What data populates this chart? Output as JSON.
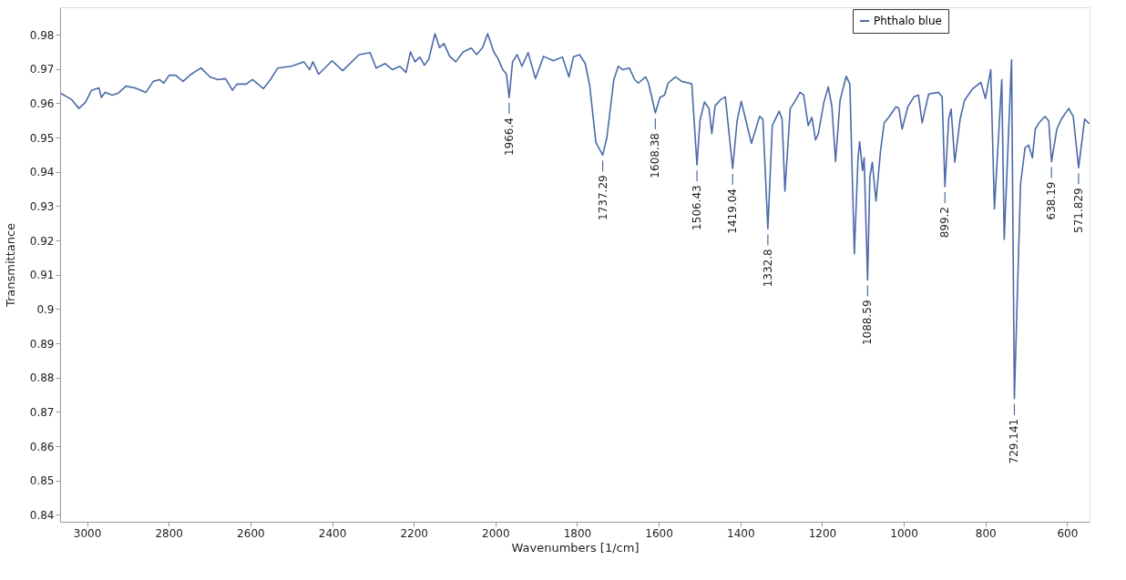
{
  "chart_data": {
    "type": "line",
    "xlabel": "Wavenumbers [1/cm]",
    "ylabel": "Transmittance",
    "xlim": [
      3066,
      545
    ],
    "ylim": [
      0.838,
      0.988
    ],
    "xticks": [
      3000,
      2800,
      2600,
      2400,
      2200,
      2000,
      1800,
      1600,
      1400,
      1200,
      1000,
      800,
      600
    ],
    "yticks": [
      0.84,
      0.85,
      0.86,
      0.87,
      0.88,
      0.89,
      0.9,
      0.91,
      0.92,
      0.93,
      0.94,
      0.95,
      0.96,
      0.97,
      0.98
    ],
    "grid": false,
    "legend": "top right",
    "marker": "none",
    "line_style": "solid",
    "series": [
      {
        "name": "Phthalo blue",
        "color": "#4a6aa8",
        "x": [
          3064,
          3038,
          3020,
          3004,
          2989,
          2971,
          2965,
          2956,
          2938,
          2923,
          2905,
          2883,
          2856,
          2838,
          2823,
          2812,
          2799,
          2783,
          2765,
          2745,
          2721,
          2699,
          2679,
          2661,
          2644,
          2633,
          2610,
          2595,
          2568,
          2551,
          2533,
          2500,
          2469,
          2455,
          2447,
          2433,
          2400,
          2374,
          2334,
          2307,
          2292,
          2270,
          2252,
          2234,
          2219,
          2208,
          2197,
          2185,
          2174,
          2163,
          2148,
          2137,
          2126,
          2112,
          2097,
          2079,
          2059,
          2046,
          2031,
          2019,
          2004,
          1993,
          1982,
          1973,
          1966.4,
          1958,
          1947,
          1935,
          1920,
          1902,
          1882,
          1858,
          1836,
          1820,
          1809,
          1794,
          1780,
          1769,
          1754,
          1737.29,
          1727,
          1710,
          1699,
          1688,
          1672,
          1659,
          1650,
          1632,
          1625,
          1608.38,
          1597,
          1586,
          1577,
          1559,
          1544,
          1526,
          1519,
          1506.43,
          1499,
          1488,
          1477,
          1470,
          1462,
          1448,
          1437,
          1419.04,
          1408,
          1398,
          1373,
          1353,
          1345,
          1332.8,
          1322,
          1305,
          1298,
          1291,
          1278,
          1269,
          1254,
          1245,
          1234,
          1225,
          1216,
          1209,
          1196,
          1185,
          1176,
          1167,
          1156,
          1141,
          1132,
          1121,
          1112,
          1108,
          1101,
          1097,
          1088.59,
          1083,
          1077,
          1068,
          1057,
          1048,
          1035,
          1019,
          1012,
          1004,
          990,
          975,
          964,
          955,
          939,
          915,
          906,
          899.2,
          890,
          884,
          875,
          862,
          851,
          831,
          811,
          800,
          787,
          778,
          760,
          754,
          736,
          729.141,
          714,
          703,
          694,
          685,
          678,
          669,
          654,
          645,
          638.19,
          625,
          614,
          596,
          585,
          571.829,
          557,
          546
        ],
        "values": [
          0.9629,
          0.9611,
          0.9585,
          0.9603,
          0.9638,
          0.9645,
          0.9617,
          0.9632,
          0.9624,
          0.963,
          0.965,
          0.9645,
          0.9632,
          0.9664,
          0.9669,
          0.9659,
          0.9682,
          0.9682,
          0.9664,
          0.9685,
          0.9703,
          0.9677,
          0.9669,
          0.9672,
          0.9638,
          0.9656,
          0.9656,
          0.9669,
          0.9643,
          0.9669,
          0.9703,
          0.9708,
          0.9721,
          0.9698,
          0.9721,
          0.9685,
          0.9724,
          0.9695,
          0.9742,
          0.9748,
          0.9703,
          0.9716,
          0.9698,
          0.9708,
          0.969,
          0.975,
          0.9721,
          0.9735,
          0.9711,
          0.9729,
          0.9803,
          0.9763,
          0.9774,
          0.9737,
          0.9721,
          0.975,
          0.9761,
          0.9742,
          0.9763,
          0.9803,
          0.975,
          0.9729,
          0.9698,
          0.9685,
          0.9617,
          0.9721,
          0.9742,
          0.9708,
          0.9748,
          0.9672,
          0.9737,
          0.9724,
          0.9735,
          0.9677,
          0.9735,
          0.9742,
          0.9716,
          0.9651,
          0.9486,
          0.9449,
          0.9501,
          0.9669,
          0.9708,
          0.9698,
          0.9703,
          0.9669,
          0.9659,
          0.9677,
          0.9659,
          0.9572,
          0.9617,
          0.9624,
          0.9659,
          0.9677,
          0.9664,
          0.9659,
          0.9656,
          0.942,
          0.955,
          0.9604,
          0.9585,
          0.9512,
          0.9593,
          0.9611,
          0.9619,
          0.941,
          0.955,
          0.9606,
          0.9483,
          0.9562,
          0.9554,
          0.9234,
          0.9535,
          0.9577,
          0.9554,
          0.9344,
          0.9585,
          0.9601,
          0.9632,
          0.9624,
          0.9535,
          0.9559,
          0.9493,
          0.9512,
          0.9601,
          0.9648,
          0.959,
          0.943,
          0.9609,
          0.9679,
          0.9656,
          0.9161,
          0.9441,
          0.9488,
          0.9404,
          0.9441,
          0.9085,
          0.9386,
          0.9428,
          0.9315,
          0.946,
          0.9543,
          0.9562,
          0.959,
          0.9585,
          0.9525,
          0.959,
          0.9619,
          0.9624,
          0.9543,
          0.9627,
          0.9632,
          0.9619,
          0.9357,
          0.9554,
          0.9583,
          0.9428,
          0.9554,
          0.9609,
          0.9643,
          0.9661,
          0.9614,
          0.9698,
          0.9292,
          0.9669,
          0.9203,
          0.9727,
          0.8739,
          0.9365,
          0.947,
          0.9478,
          0.9441,
          0.9525,
          0.9543,
          0.9562,
          0.9549,
          0.943,
          0.9525,
          0.9554,
          0.9585,
          0.9562,
          0.9412,
          0.9554,
          0.9541
        ]
      }
    ],
    "annotations": [
      {
        "text": "1966.4",
        "x": 1966.4,
        "y": 0.9617
      },
      {
        "text": "1737.29",
        "x": 1737.29,
        "y": 0.9449
      },
      {
        "text": "1608.38",
        "x": 1608.38,
        "y": 0.9572
      },
      {
        "text": "1506.43",
        "x": 1506.43,
        "y": 0.942
      },
      {
        "text": "1419.04",
        "x": 1419.04,
        "y": 0.941
      },
      {
        "text": "1332.8",
        "x": 1332.8,
        "y": 0.9234
      },
      {
        "text": "1088.59",
        "x": 1088.59,
        "y": 0.9085
      },
      {
        "text": "899.2",
        "x": 899.2,
        "y": 0.9357
      },
      {
        "text": "729.141",
        "x": 729.141,
        "y": 0.8739
      },
      {
        "text": "638.19",
        "x": 638.19,
        "y": 0.943
      },
      {
        "text": "571.829",
        "x": 571.829,
        "y": 0.9412
      }
    ]
  }
}
